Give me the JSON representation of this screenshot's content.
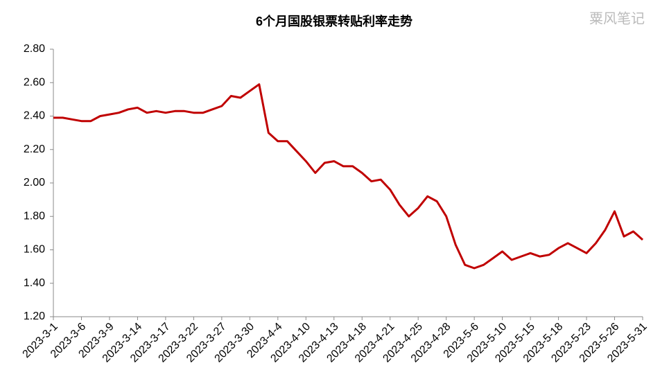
{
  "chart_data": {
    "type": "line",
    "title": "6个月国股银票转贴利率走势",
    "watermark": "粟风笔记",
    "categories": [
      "2023-3-1",
      null,
      null,
      "2023-3-6",
      null,
      null,
      "2023-3-9",
      null,
      null,
      "2023-3-14",
      null,
      null,
      "2023-3-17",
      null,
      null,
      "2023-3-22",
      null,
      null,
      "2023-3-27",
      null,
      null,
      "2023-3-30",
      null,
      null,
      "2023-4-4",
      null,
      null,
      "2023-4-10",
      null,
      null,
      "2023-4-13",
      null,
      null,
      "2023-4-18",
      null,
      null,
      "2023-4-21",
      null,
      null,
      "2023-4-25",
      null,
      null,
      "2023-4-28",
      null,
      null,
      "2023-5-6",
      null,
      null,
      "2023-5-10",
      null,
      null,
      "2023-5-15",
      null,
      null,
      "2023-5-18",
      null,
      null,
      "2023-5-23",
      null,
      null,
      "2023-5-26",
      null,
      null,
      "2023-5-31"
    ],
    "values": [
      2.39,
      2.39,
      2.38,
      2.37,
      2.37,
      2.4,
      2.41,
      2.42,
      2.44,
      2.45,
      2.42,
      2.43,
      2.42,
      2.43,
      2.43,
      2.42,
      2.42,
      2.44,
      2.46,
      2.52,
      2.51,
      2.55,
      2.59,
      2.3,
      2.25,
      2.25,
      2.19,
      2.13,
      2.06,
      2.12,
      2.13,
      2.1,
      2.1,
      2.06,
      2.01,
      2.02,
      1.96,
      1.87,
      1.8,
      1.85,
      1.92,
      1.89,
      1.8,
      1.63,
      1.51,
      1.49,
      1.51,
      1.55,
      1.59,
      1.54,
      1.56,
      1.58,
      1.56,
      1.57,
      1.61,
      1.64,
      1.61,
      1.58,
      1.64,
      1.72,
      1.83,
      1.68,
      1.71,
      1.66
    ],
    "color": "#c00000",
    "ylim": [
      1.2,
      2.8
    ],
    "yticks": [
      {
        "value": 1.2,
        "label": "1.20"
      },
      {
        "value": 1.4,
        "label": "1.40"
      },
      {
        "value": 1.6,
        "label": "1.60"
      },
      {
        "value": 1.8,
        "label": "1.80"
      },
      {
        "value": 2.0,
        "label": "2.00"
      },
      {
        "value": 2.2,
        "label": "2.20"
      },
      {
        "value": 2.4,
        "label": "2.40"
      },
      {
        "value": 2.6,
        "label": "2.60"
      },
      {
        "value": 2.8,
        "label": "2.80"
      }
    ],
    "grid": false
  }
}
